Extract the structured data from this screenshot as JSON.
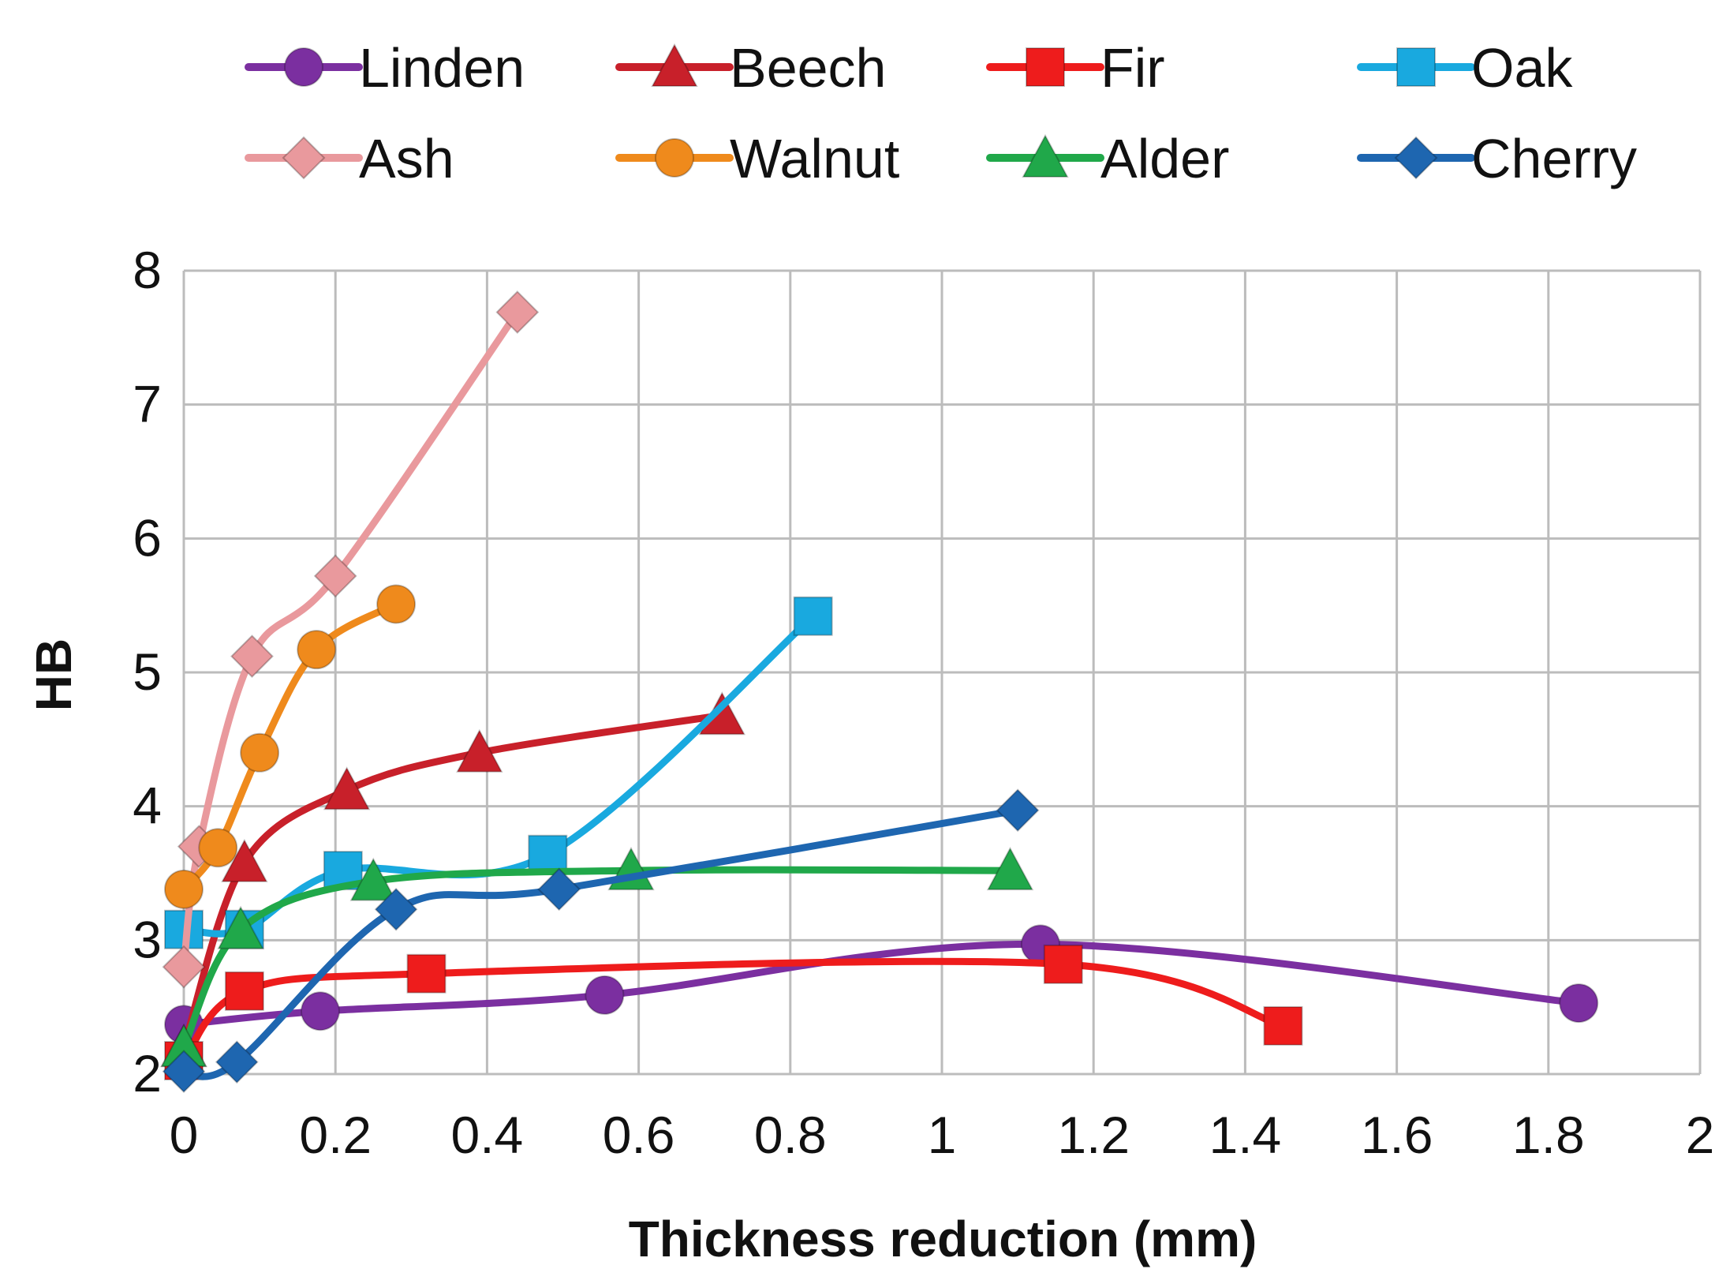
{
  "chart_data": {
    "type": "line",
    "title": "",
    "xlabel": "Thickness reduction (mm)",
    "ylabel": "HB",
    "xlim": [
      0,
      2
    ],
    "ylim": [
      2,
      8
    ],
    "x_ticks": [
      "0",
      "0.2",
      "0.4",
      "0.6",
      "0.8",
      "1",
      "1.2",
      "1.4",
      "1.6",
      "1.8",
      "2"
    ],
    "y_ticks": [
      "2",
      "3",
      "4",
      "5",
      "6",
      "7",
      "8"
    ],
    "grid": true,
    "legend_position": "top",
    "series": [
      {
        "name": "Linden",
        "color": "#7b2fa0",
        "marker": "circle",
        "points": [
          [
            0,
            2.37
          ],
          [
            0.18,
            2.47
          ],
          [
            0.555,
            2.59
          ],
          [
            1.13,
            2.97
          ],
          [
            1.84,
            2.53
          ]
        ]
      },
      {
        "name": "Beech",
        "color": "#c8202a",
        "marker": "triangle",
        "points": [
          [
            0,
            2.2
          ],
          [
            0.08,
            3.58
          ],
          [
            0.215,
            4.12
          ],
          [
            0.39,
            4.4
          ],
          [
            0.71,
            4.68
          ]
        ]
      },
      {
        "name": "Fir",
        "color": "#ee1c1c",
        "marker": "square",
        "points": [
          [
            0,
            2.1
          ],
          [
            0.08,
            2.62
          ],
          [
            0.32,
            2.75
          ],
          [
            1.16,
            2.82
          ],
          [
            1.45,
            2.36
          ]
        ]
      },
      {
        "name": "Oak",
        "color": "#19a9df",
        "marker": "square",
        "points": [
          [
            0,
            3.08
          ],
          [
            0.08,
            3.08
          ],
          [
            0.21,
            3.52
          ],
          [
            0.48,
            3.64
          ],
          [
            0.83,
            5.42
          ]
        ]
      },
      {
        "name": "Ash",
        "color": "#e9999d",
        "marker": "diamond",
        "points": [
          [
            0,
            2.8
          ],
          [
            0.02,
            3.7
          ],
          [
            0.09,
            5.12
          ],
          [
            0.2,
            5.72
          ],
          [
            0.44,
            7.69
          ]
        ]
      },
      {
        "name": "Walnut",
        "color": "#ef8a1c",
        "marker": "circle",
        "points": [
          [
            0,
            3.38
          ],
          [
            0.045,
            3.69
          ],
          [
            0.1,
            4.4
          ],
          [
            0.175,
            5.17
          ],
          [
            0.28,
            5.51
          ]
        ]
      },
      {
        "name": "Alder",
        "color": "#20a84a",
        "marker": "triangle",
        "points": [
          [
            0,
            2.2
          ],
          [
            0.075,
            3.08
          ],
          [
            0.25,
            3.44
          ],
          [
            0.59,
            3.52
          ],
          [
            1.09,
            3.52
          ]
        ]
      },
      {
        "name": "Cherry",
        "color": "#1e66b0",
        "marker": "diamond",
        "points": [
          [
            0,
            2.02
          ],
          [
            0.07,
            2.09
          ],
          [
            0.28,
            3.23
          ],
          [
            0.495,
            3.38
          ],
          [
            1.1,
            3.97
          ]
        ]
      }
    ]
  }
}
